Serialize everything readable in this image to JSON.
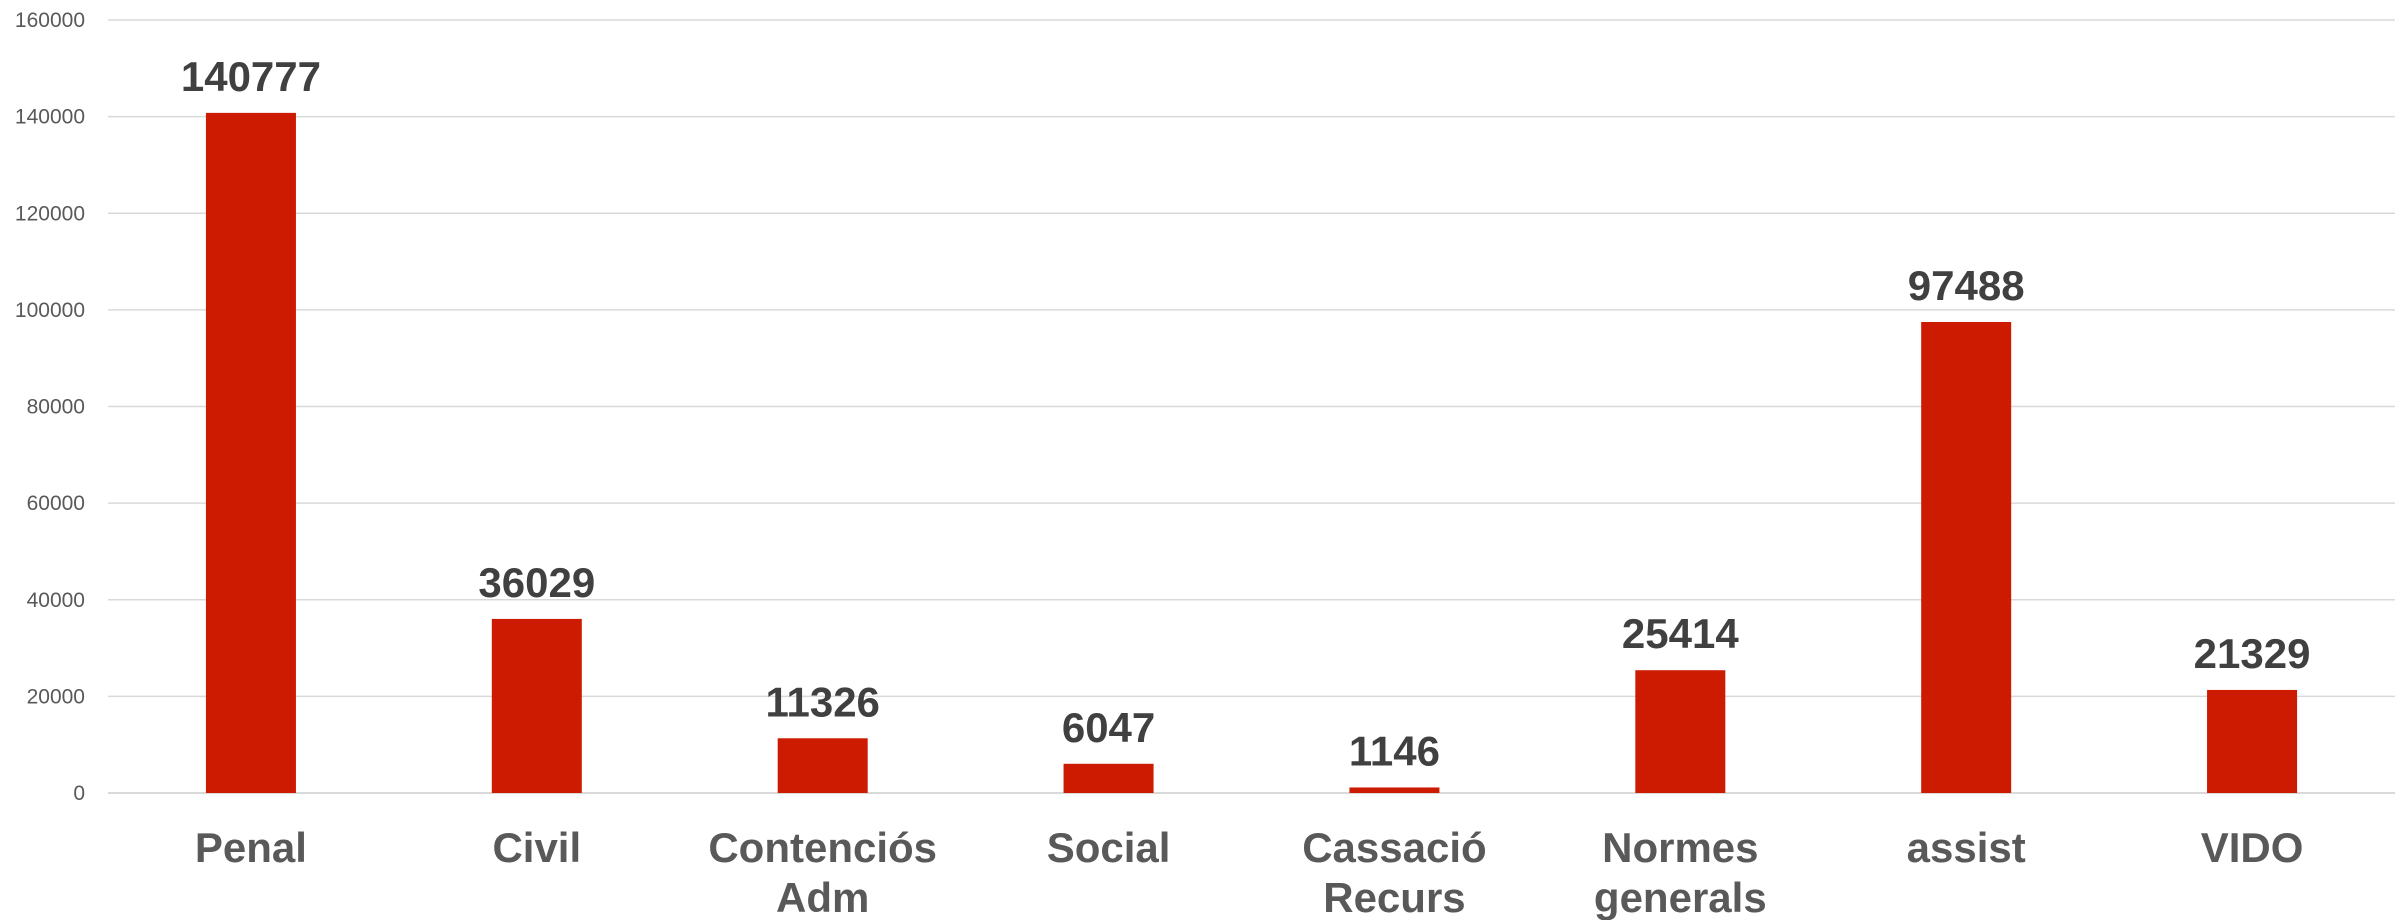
{
  "chart_data": {
    "type": "bar",
    "categories": [
      [
        "Penal"
      ],
      [
        "Civil"
      ],
      [
        "Contenciós",
        "Adm"
      ],
      [
        "Social"
      ],
      [
        "Cassació",
        "Recurs"
      ],
      [
        "Normes",
        "generals"
      ],
      [
        "assist"
      ],
      [
        "VIDO"
      ]
    ],
    "values": [
      140777,
      36029,
      11326,
      6047,
      1146,
      25414,
      97488,
      21329
    ],
    "title": "",
    "xlabel": "",
    "ylabel": "",
    "ylim": [
      0,
      160000
    ],
    "yticks": [
      0,
      20000,
      40000,
      60000,
      80000,
      100000,
      120000,
      140000,
      160000
    ],
    "grid": true,
    "legend": "none",
    "data_labels": true,
    "colors": {
      "bar": "#cc1b00",
      "grid": "#d9d9d9",
      "tick_text": "#595959",
      "label_text": "#404040"
    }
  }
}
